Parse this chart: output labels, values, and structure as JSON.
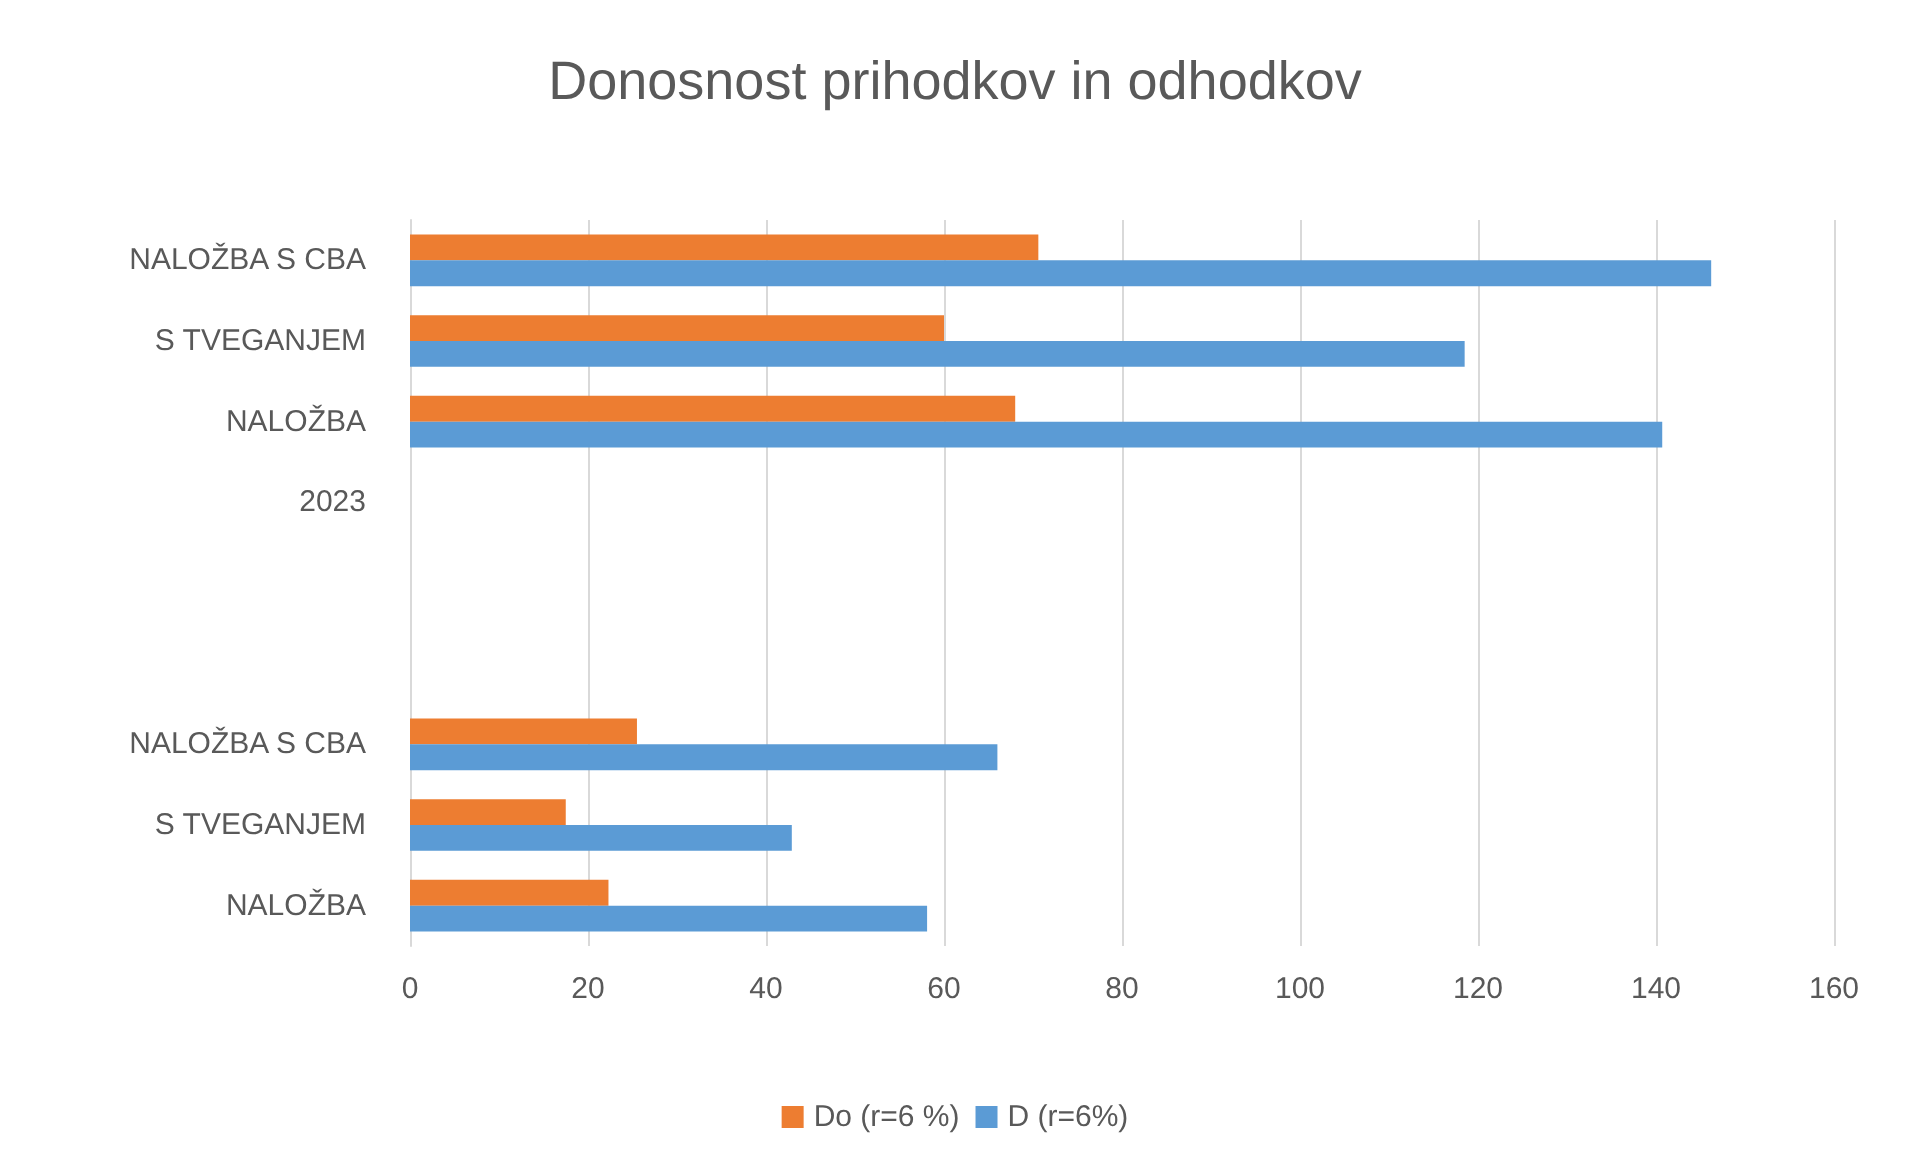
{
  "chart_data": {
    "type": "bar",
    "orientation": "horizontal",
    "title": "Donosnost prihodkov in odhodkov",
    "categories": [
      "NALOŽBA S CBA",
      "S TVEGANJEM",
      "NALOŽBA",
      "2023",
      null,
      null,
      "NALOŽBA S CBA",
      "S TVEGANJEM",
      "NALOŽBA"
    ],
    "series": [
      {
        "name": "Do (r=6 %)",
        "color": "#ed7d31",
        "values": [
          70.6,
          60,
          68,
          null,
          null,
          null,
          25.5,
          17.5,
          22.3
        ]
      },
      {
        "name": "D (r=6%)",
        "color": "#5b9bd5",
        "values": [
          146.2,
          118.5,
          140.7,
          null,
          null,
          null,
          66,
          42.9,
          58.1
        ]
      }
    ],
    "xlim": [
      0,
      160
    ],
    "xticks": [
      0,
      20,
      40,
      60,
      80,
      100,
      120,
      140,
      160
    ],
    "grid": "x",
    "legend": "bottom"
  }
}
